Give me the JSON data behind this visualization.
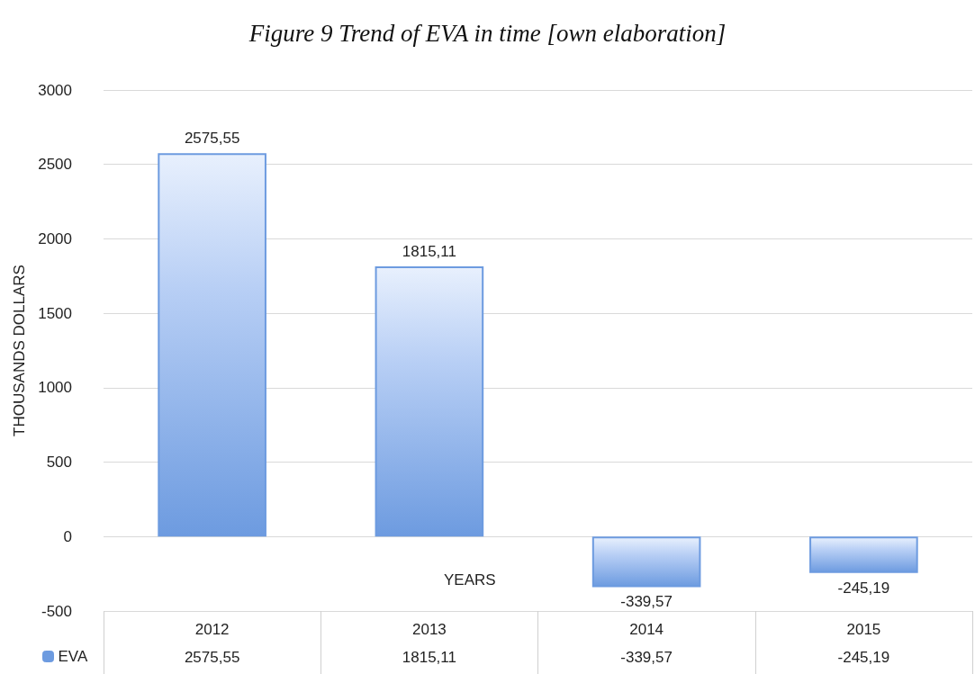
{
  "chart_data": {
    "type": "bar",
    "title": "Figure 9 Trend of EVA in time [own elaboration]",
    "xlabel": "YEARS",
    "ylabel": "THOUSANDS DOLLARS",
    "categories": [
      "2012",
      "2013",
      "2014",
      "2015"
    ],
    "series": [
      {
        "name": "EVA",
        "color": "#6d9be0",
        "values": [
          2575.55,
          1815.11,
          -339.57,
          -245.19
        ],
        "value_labels": [
          "2575,55",
          "1815,11",
          "-339,57",
          "-245,19"
        ]
      }
    ],
    "ylim": [
      -500,
      3000
    ],
    "yticks": [
      -500,
      0,
      500,
      1000,
      1500,
      2000,
      2500,
      3000
    ],
    "grid": "y",
    "legend": "bottom left"
  }
}
